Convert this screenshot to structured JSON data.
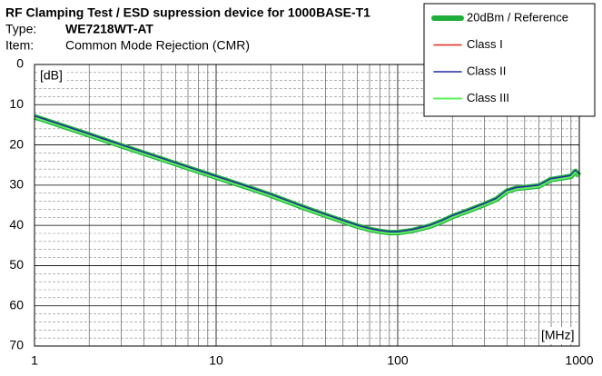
{
  "chart_data": {
    "type": "line",
    "title": "RF Clamping Test / ESD supression device for 1000BASE-T1",
    "type_label": "Type:",
    "type_value": "WE7218WT-AT",
    "item_label": "Item:",
    "item_value": "Common Mode Rejection (CMR)",
    "y_unit": "[dB]",
    "x_unit": "[MHz]",
    "log_x": true,
    "y_inverted": true,
    "grid": true,
    "xlim": [
      1,
      1000
    ],
    "xticks": [
      1,
      10,
      100,
      1000
    ],
    "xminorticks": [
      2,
      3,
      4,
      5,
      6,
      7,
      8,
      9,
      20,
      30,
      40,
      50,
      60,
      70,
      80,
      90,
      200,
      300,
      400,
      500,
      600,
      700,
      800,
      900
    ],
    "ylim": [
      0,
      70
    ],
    "yticks": [
      0,
      10,
      20,
      30,
      40,
      50,
      60,
      70
    ],
    "yminorticks": [
      2,
      4,
      6,
      8,
      12,
      14,
      16,
      18,
      22,
      24,
      26,
      28,
      32,
      34,
      36,
      38,
      42,
      44,
      46,
      48,
      52,
      54,
      56,
      58,
      62,
      64,
      66,
      68
    ],
    "legend_position": "upper right",
    "x": [
      1,
      2,
      3,
      5,
      7,
      10,
      15,
      20,
      30,
      40,
      50,
      60,
      70,
      80,
      90,
      100,
      120,
      150,
      180,
      200,
      250,
      300,
      350,
      400,
      450,
      500,
      600,
      700,
      800,
      900,
      950,
      1000
    ],
    "series": [
      {
        "name": "20dBm / Reference",
        "color": "#1fae3c",
        "width": 6,
        "values": [
          13,
          17.5,
          20.2,
          23.5,
          25.7,
          28,
          30.6,
          32.5,
          35.5,
          37.5,
          39,
          40.2,
          41,
          41.5,
          41.8,
          41.8,
          41.3,
          40.2,
          38.8,
          37.8,
          36.2,
          34.8,
          33.5,
          31.5,
          30.8,
          30.6,
          30.2,
          28.6,
          28.2,
          27.8,
          26.6,
          27.6
        ]
      },
      {
        "name": "Class I",
        "color": "#e8261e",
        "width": 1.5,
        "values": [
          13,
          17.4,
          20.1,
          23.4,
          25.6,
          27.9,
          30.5,
          32.4,
          35.4,
          37.4,
          38.9,
          40.1,
          40.9,
          41.4,
          41.7,
          41.7,
          41.2,
          40.1,
          38.7,
          37.7,
          36.1,
          34.7,
          33.4,
          31.4,
          30.7,
          30.5,
          30.1,
          28.5,
          28.1,
          27.7,
          26.5,
          27.5
        ]
      },
      {
        "name": "Class II",
        "color": "#1e2aa8",
        "width": 1.5,
        "values": [
          12.8,
          17.3,
          20,
          23.3,
          25.5,
          27.8,
          30.4,
          32.3,
          35.3,
          37.3,
          38.8,
          40,
          40.8,
          41.3,
          41.6,
          41.6,
          41.1,
          40,
          38.6,
          37.6,
          36,
          34.6,
          33.3,
          31.3,
          30.6,
          30.4,
          30,
          28.4,
          28,
          27.6,
          26.4,
          27.4
        ]
      },
      {
        "name": "Class III",
        "color": "#5cf05c",
        "width": 2,
        "values": [
          13.2,
          17.7,
          20.4,
          23.7,
          25.9,
          28.2,
          30.8,
          32.7,
          35.7,
          37.7,
          39.2,
          40.4,
          41.2,
          41.7,
          42,
          42,
          41.5,
          40.4,
          39,
          38,
          36.4,
          35,
          33.7,
          31.7,
          31,
          30.8,
          30.4,
          28.8,
          28.4,
          28,
          26.8,
          27.8
        ]
      }
    ]
  }
}
